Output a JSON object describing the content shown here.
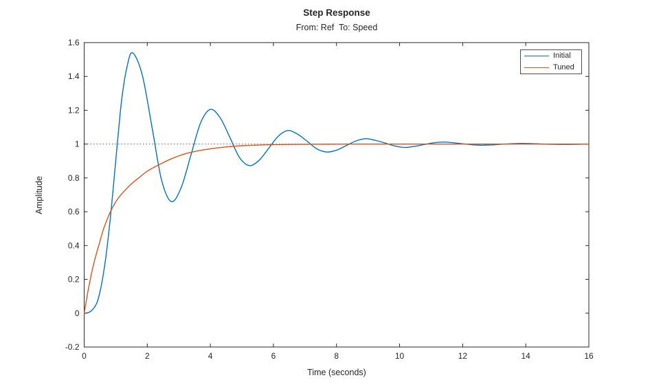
{
  "chart_data": {
    "type": "line",
    "title": "Step Response",
    "subtitle": "From: Ref  To: Speed",
    "xlabel": "Time (seconds)",
    "ylabel": "Amplitude",
    "xlim": [
      0,
      16
    ],
    "ylim": [
      -0.2,
      1.6
    ],
    "grid": false,
    "box": true,
    "tick_direction": "in",
    "xticks": {
      "values": [
        0,
        2,
        4,
        6,
        8,
        10,
        12,
        14,
        16
      ],
      "labels": [
        "0",
        "2",
        "4",
        "6",
        "8",
        "10",
        "12",
        "14",
        "16"
      ]
    },
    "yticks": {
      "values": [
        -0.2,
        0,
        0.2,
        0.4,
        0.6,
        0.8,
        1,
        1.2,
        1.4,
        1.6
      ],
      "labels": [
        "-0.2",
        "0",
        "0.2",
        "0.4",
        "0.6",
        "0.8",
        "1",
        "1.2",
        "1.4",
        "1.6"
      ]
    },
    "colors": {
      "axis": "#262626",
      "tick_label": "#262626",
      "reference_line": "#5a5a5a"
    },
    "reference_line": {
      "y": 1,
      "style": "dotted"
    },
    "legend": {
      "position": "northeast",
      "entries": [
        "Initial",
        "Tuned"
      ]
    },
    "series": [
      {
        "name": "Initial",
        "color": "#0072BD",
        "points": [
          [
            0,
            0
          ],
          [
            0.2,
            0.01
          ],
          [
            0.4,
            0.06
          ],
          [
            0.55,
            0.17
          ],
          [
            0.7,
            0.35
          ],
          [
            0.85,
            0.6
          ],
          [
            1.0,
            0.9
          ],
          [
            1.1,
            1.1
          ],
          [
            1.2,
            1.28
          ],
          [
            1.35,
            1.45
          ],
          [
            1.53,
            1.54
          ],
          [
            1.84,
            1.41
          ],
          [
            2.15,
            1.1
          ],
          [
            2.45,
            0.79
          ],
          [
            2.76,
            0.66
          ],
          [
            3.07,
            0.74
          ],
          [
            3.38,
            0.932
          ],
          [
            3.69,
            1.125
          ],
          [
            4.0,
            1.205
          ],
          [
            4.31,
            1.156
          ],
          [
            4.62,
            1.039
          ],
          [
            4.92,
            0.922
          ],
          [
            5.23,
            0.873
          ],
          [
            5.54,
            0.903
          ],
          [
            5.85,
            0.975
          ],
          [
            6.15,
            1.046
          ],
          [
            6.46,
            1.08
          ],
          [
            6.77,
            1.058
          ],
          [
            7.08,
            1.015
          ],
          [
            7.38,
            0.971
          ],
          [
            7.69,
            0.953
          ],
          [
            8.0,
            0.964
          ],
          [
            8.31,
            0.991
          ],
          [
            8.61,
            1.018
          ],
          [
            8.92,
            1.032
          ],
          [
            9.23,
            1.022
          ],
          [
            9.54,
            1.006
          ],
          [
            9.84,
            0.989
          ],
          [
            10.15,
            0.98
          ],
          [
            10.46,
            0.986
          ],
          [
            10.77,
            0.997
          ],
          [
            11.07,
            1.007
          ],
          [
            11.38,
            1.012
          ],
          [
            11.69,
            1.008
          ],
          [
            11.99,
            1.002
          ],
          [
            12.3,
            0.996
          ],
          [
            12.61,
            0.993
          ],
          [
            12.92,
            0.995
          ],
          [
            13.22,
            0.999
          ],
          [
            13.53,
            1.002
          ],
          [
            13.84,
            1.004
          ],
          [
            14.15,
            1.003
          ],
          [
            14.45,
            1.001
          ],
          [
            14.76,
            0.999
          ],
          [
            15.07,
            0.998
          ],
          [
            15.38,
            0.998
          ],
          [
            15.69,
            0.999
          ],
          [
            16,
            1.0
          ]
        ]
      },
      {
        "name": "Tuned",
        "color": "#D95319",
        "points": [
          [
            0,
            0
          ],
          [
            0.05,
            0.055
          ],
          [
            0.12,
            0.13
          ],
          [
            0.2,
            0.205
          ],
          [
            0.3,
            0.29
          ],
          [
            0.4,
            0.36
          ],
          [
            0.5,
            0.425
          ],
          [
            0.6,
            0.49
          ],
          [
            0.75,
            0.565
          ],
          [
            0.9,
            0.625
          ],
          [
            1.05,
            0.672
          ],
          [
            1.25,
            0.718
          ],
          [
            1.5,
            0.765
          ],
          [
            1.75,
            0.803
          ],
          [
            2.0,
            0.84
          ],
          [
            2.25,
            0.866
          ],
          [
            2.5,
            0.89
          ],
          [
            2.75,
            0.912
          ],
          [
            3.0,
            0.93
          ],
          [
            3.25,
            0.945
          ],
          [
            3.5,
            0.956
          ],
          [
            3.75,
            0.965
          ],
          [
            4.0,
            0.972
          ],
          [
            4.25,
            0.978
          ],
          [
            4.5,
            0.983
          ],
          [
            4.75,
            0.987
          ],
          [
            5.0,
            0.99
          ],
          [
            5.5,
            0.994
          ],
          [
            6.0,
            0.9965
          ],
          [
            6.5,
            0.998
          ],
          [
            7.0,
            0.9985
          ],
          [
            7.5,
            0.999
          ],
          [
            8.0,
            0.9995
          ],
          [
            9.0,
            1.0
          ],
          [
            10.0,
            1.0
          ],
          [
            11.0,
            1.0
          ],
          [
            12.0,
            1.0
          ],
          [
            13.0,
            1.0
          ],
          [
            14.0,
            1.0
          ],
          [
            15.0,
            1.0
          ],
          [
            16.0,
            1.0
          ]
        ]
      }
    ]
  }
}
